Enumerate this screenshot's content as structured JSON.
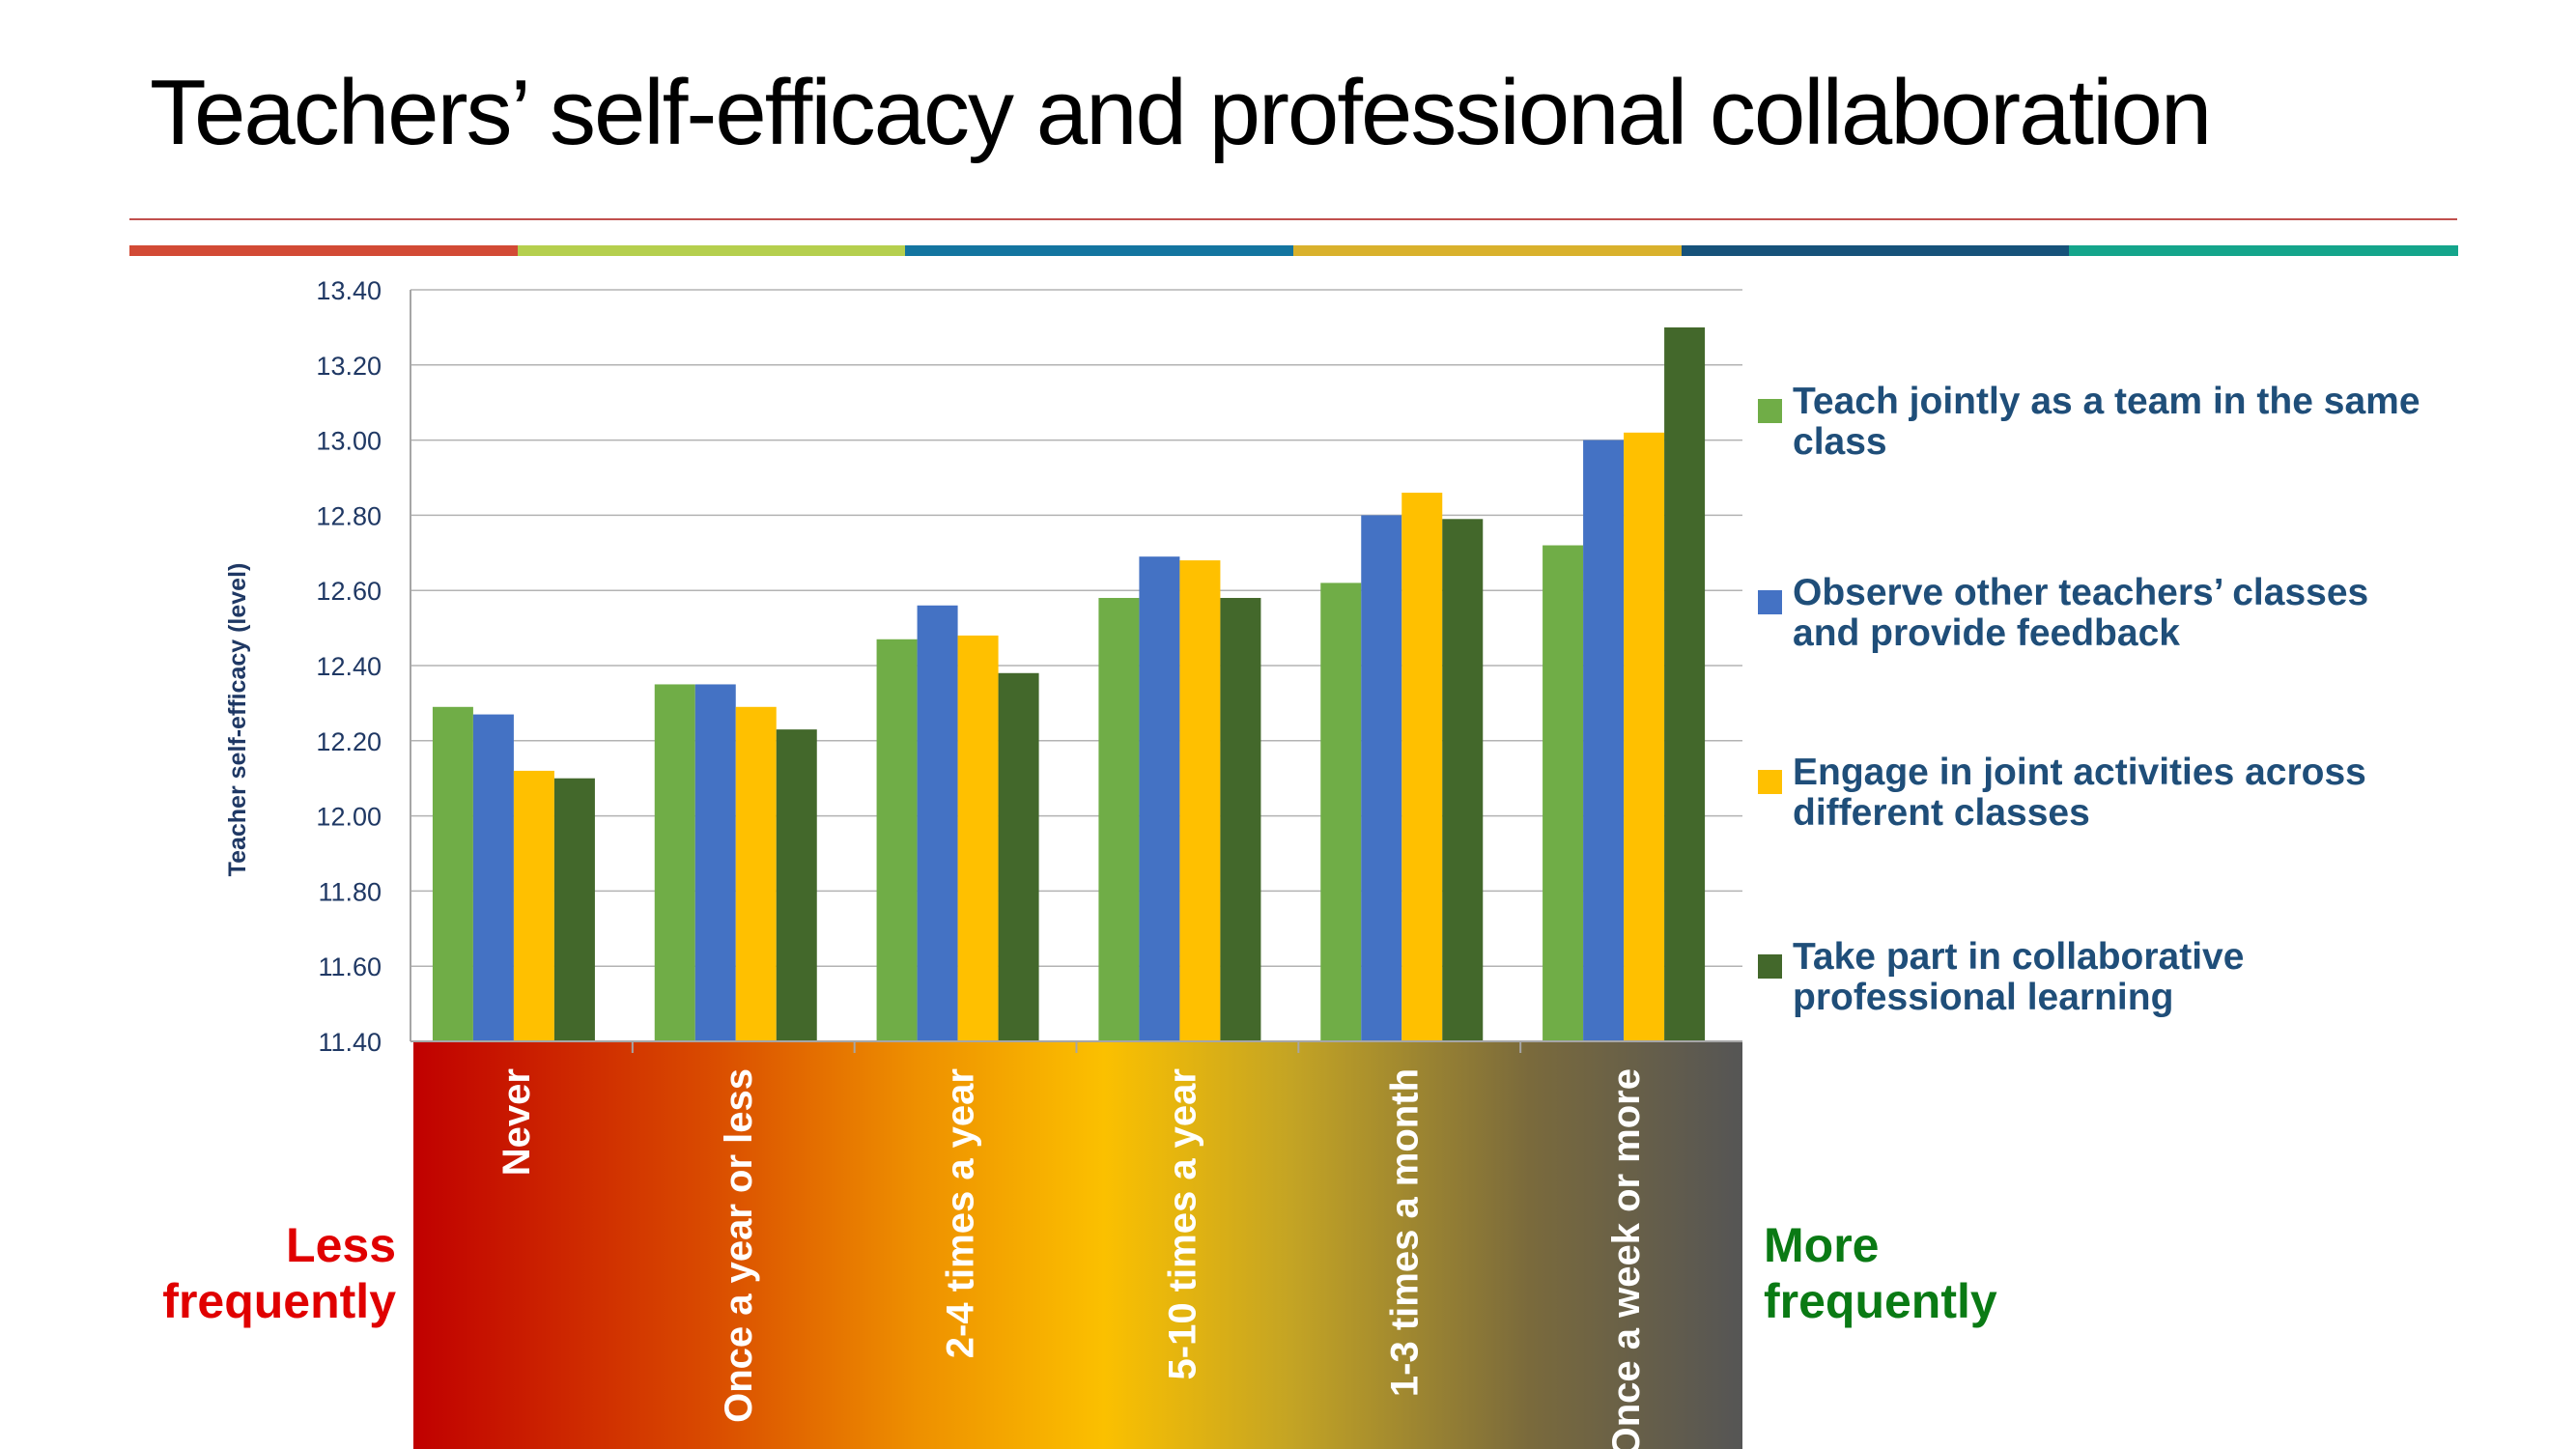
{
  "slide": {
    "title": "Teachers’ self-efficacy and professional collaboration",
    "stripe_colors": [
      "#d24a35",
      "#b5cf4e",
      "#1375a0",
      "#d9b12c",
      "#16527a",
      "#14a58b"
    ],
    "less_label": "Less frequently",
    "more_label": "More frequently",
    "less_color": "#e00000",
    "more_color": "#0a7a14"
  },
  "chart_data": {
    "type": "bar",
    "title": "",
    "xlabel": "",
    "ylabel": "Teacher self-efficacy (level)",
    "ylim": [
      11.4,
      13.4
    ],
    "yticks": [
      "11.40",
      "11.60",
      "11.80",
      "12.00",
      "12.20",
      "12.40",
      "12.60",
      "12.80",
      "13.00",
      "13.20",
      "13.40"
    ],
    "grid": true,
    "legend_position": "right",
    "categories": [
      "Never",
      "Once a year or less",
      "2-4 times a year",
      "5-10 times a year",
      "1-3 times a month",
      "Once a week or more"
    ],
    "series": [
      {
        "name": "Teach jointly as a team in the same class",
        "color": "#70ad47",
        "values": [
          12.29,
          12.35,
          12.47,
          12.58,
          12.62,
          12.72
        ]
      },
      {
        "name": "Observe other teachers’ classes and provide feedback",
        "color": "#4472c4",
        "values": [
          12.27,
          12.35,
          12.56,
          12.69,
          12.8,
          13.0
        ]
      },
      {
        "name": "Engage in joint activities across different classes",
        "color": "#ffc000",
        "values": [
          12.12,
          12.29,
          12.48,
          12.68,
          12.86,
          13.02
        ]
      },
      {
        "name": "Take part in collaborative professional learning",
        "color": "#43682b",
        "values": [
          12.1,
          12.23,
          12.38,
          12.58,
          12.79,
          13.3
        ]
      }
    ]
  }
}
